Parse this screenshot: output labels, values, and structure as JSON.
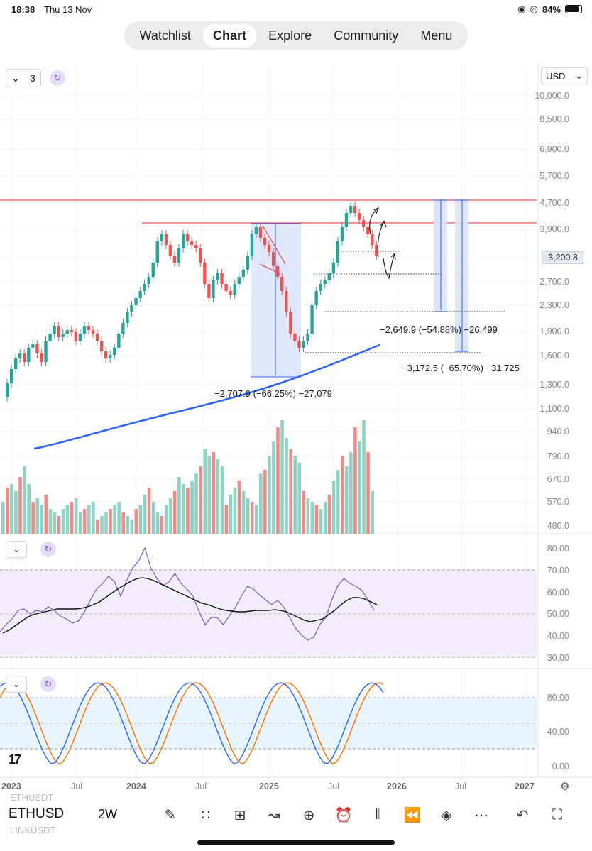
{
  "status": {
    "time": "18:38",
    "date": "Thu 13 Nov",
    "battery": "84%"
  },
  "nav": {
    "tabs": [
      "Watchlist",
      "Chart",
      "Explore",
      "Community",
      "Menu"
    ],
    "active": "Chart"
  },
  "chart_header": {
    "layout_count": "3"
  },
  "currency": "USD",
  "price_axis": [
    "10,000.0",
    "8,500.0",
    "6,900.0",
    "5,700.0",
    "4,700.0",
    "3,900.0",
    "3,200.8",
    "2,700.0",
    "2,300.0",
    "1,900.0",
    "1,600.0",
    "1,300.0",
    "1,100.0",
    "940.0",
    "790.0",
    "670.0",
    "570.0",
    "480.0"
  ],
  "last_price": "3,200.8",
  "rsi_axis": [
    "80.00",
    "70.00",
    "60.00",
    "50.00",
    "40.00",
    "30.00"
  ],
  "stoch_axis": [
    "80.00",
    "40.00",
    "0.00"
  ],
  "time_axis": [
    "2023",
    "Jul",
    "2024",
    "Jul",
    "2025",
    "Jul",
    "2026",
    "Jul",
    "2027"
  ],
  "measurements": [
    "−2,707.9 (−66.25%) −27,079",
    "−2,649.9 (−54.88%) −26,499",
    "−3,172.5 (−65.70%) −31,725"
  ],
  "symbol": "ETHUSD",
  "timeframe": "2W",
  "ghost_symbols": [
    "ETHUSDT",
    "LINKUSDT"
  ],
  "logo": "17",
  "colors": {
    "up": "#26a69a",
    "down": "#ef5350",
    "ma": "#2962ff",
    "rsi": "#7e57c2",
    "stochK": "#2962ff",
    "stochD": "#ff6d00",
    "rangeFill": "#d9e4fb"
  }
}
